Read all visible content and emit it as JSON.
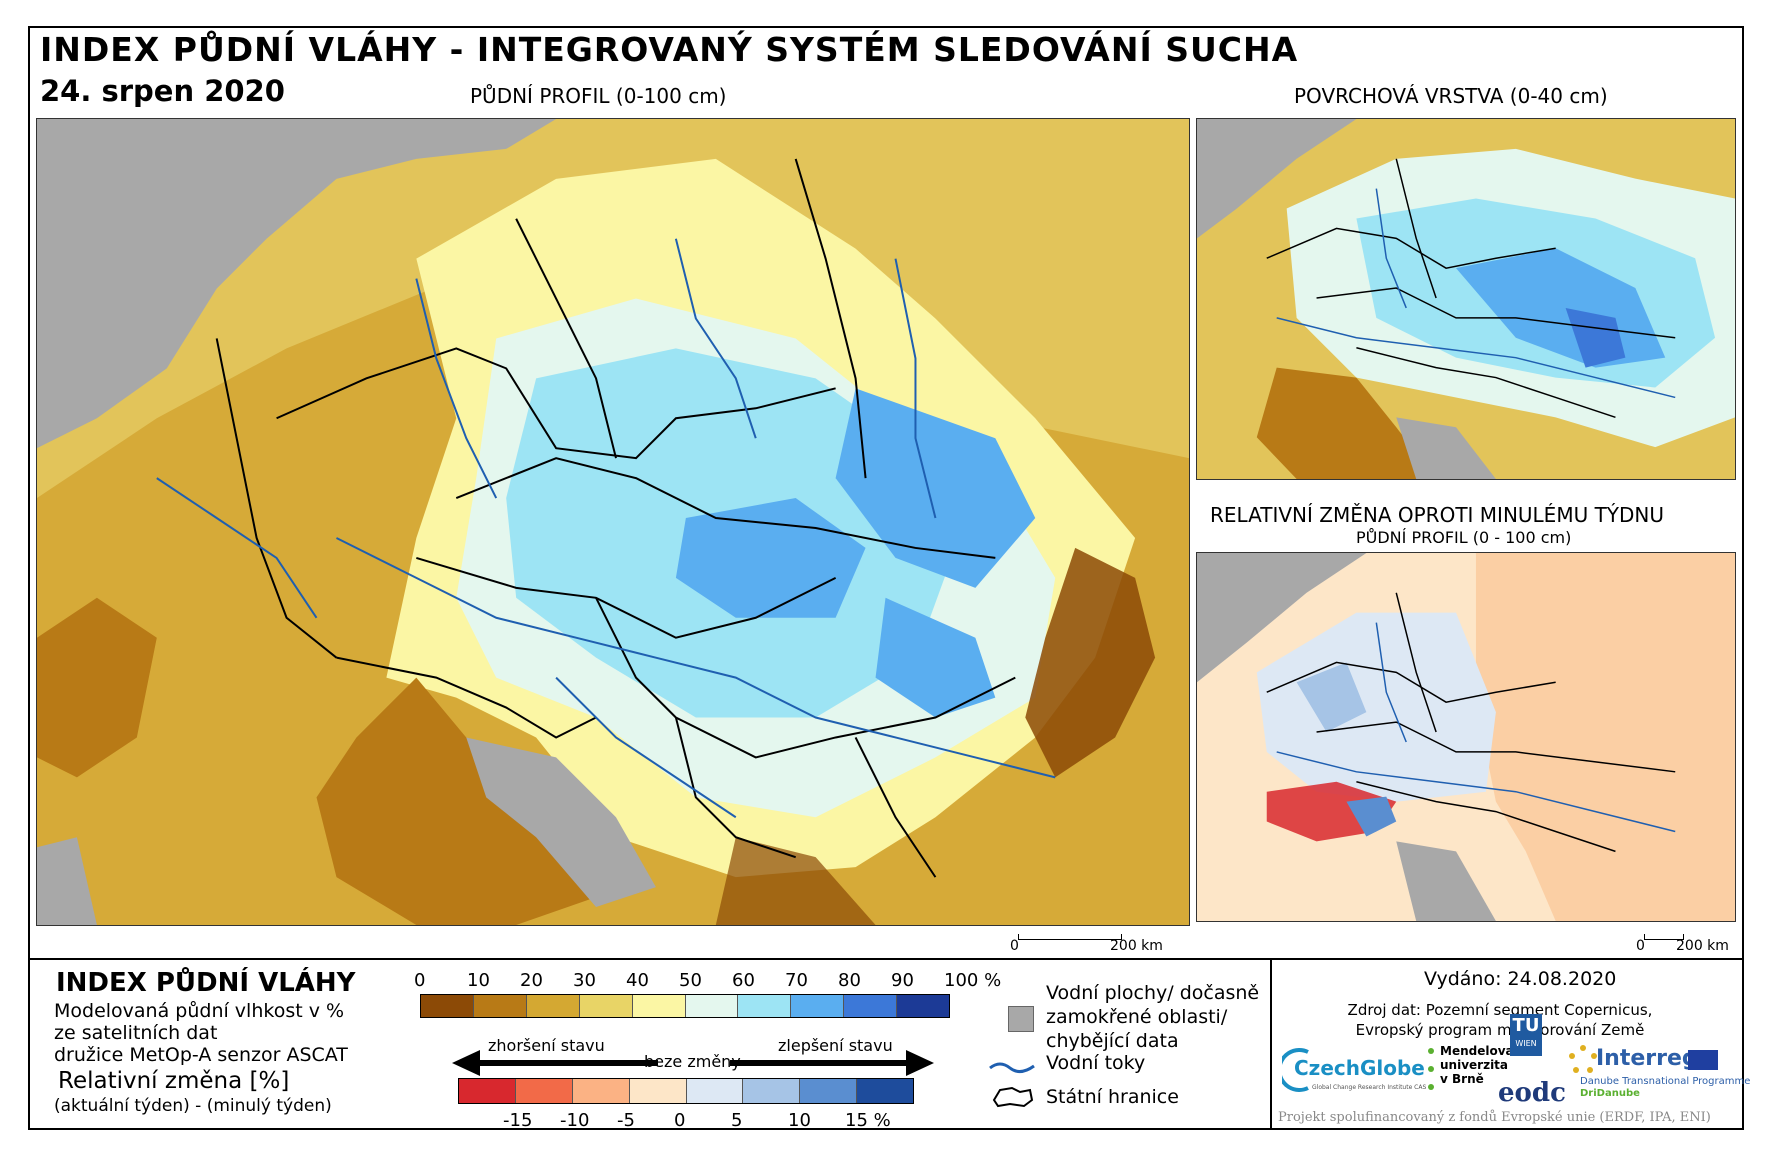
{
  "title": "INDEX PŮDNÍ VLÁHY - INTEGROVANÝ SYSTÉM SLEDOVÁNÍ SUCHA",
  "date": "24. srpen 2020",
  "maps": {
    "main_caption": "PŮDNÍ PROFIL (0-100 cm)",
    "surface_caption": "POVRCHOVÁ VRSTVA (0-40 cm)",
    "change_caption": "RELATIVNÍ ZMĚNA OPROTI MINULÉMU TÝDNU",
    "change_subcaption": "PŮDNÍ PROFIL (0 - 100 cm)"
  },
  "scalebar": {
    "zero": "0",
    "distance": "200 km"
  },
  "legend": {
    "title": "INDEX PŮDNÍ VLÁHY",
    "line1": "Modelovaná půdní vlhkost v %",
    "line2": "ze satelitních dat",
    "line3": "družice MetOp-A senzor ASCAT",
    "rel_title": "Relativní změna [%]",
    "rel_sub": "(aktuální týden) - (minulý týden)",
    "moisture_ticks": [
      "0",
      "10",
      "20",
      "30",
      "40",
      "50",
      "60",
      "70",
      "80",
      "90",
      "100 %"
    ],
    "moisture_colors": [
      "#8c4a06",
      "#b87a16",
      "#d4a832",
      "#e8d466",
      "#fbf6a4",
      "#e4f7ee",
      "#9de4f4",
      "#5aaef0",
      "#3c78d8",
      "#1c3a96"
    ],
    "worse_label": "zhoršení stavu",
    "nochange_label": "beze změny",
    "better_label": "zlepšení stavu",
    "change_ticks": [
      "-15",
      "-10",
      "-5",
      "0",
      "5",
      "10",
      "15 %"
    ],
    "change_colors": [
      "#d8282e",
      "#f26a48",
      "#fbb284",
      "#fde6c8",
      "#dde8f4",
      "#a6c4e6",
      "#5a8ed0",
      "#1e4c9c"
    ],
    "water_label_1": "Vodní plochy/ dočasně",
    "water_label_2": "zamokřené oblasti/",
    "water_label_3": "chybějící data",
    "rivers_label": "Vodní toky",
    "borders_label": "Státní hranice"
  },
  "info": {
    "issued": "Vydáno: 24.08.2020",
    "source_1": "Zdroj dat: Pozemní segment Copernicus,",
    "source_2": "Evropský program monitorování Země",
    "footer": "Projekt spolufinancovaný z fondů Evropské unie (ERDF, IPA, ENI)"
  },
  "logos": {
    "czechglobe": "CzechGlobe",
    "czechglobe_sub": "Global Change Research Institute CAS",
    "mendel_1": "Mendelova",
    "mendel_2": "univerzita",
    "mendel_3": "v Brně",
    "tu": "TU",
    "wien": "WIEN",
    "eodc": "eodc",
    "interreg": "Interreg",
    "interreg_sub": "Danube Transnational Programme",
    "dridanube": "DriDanube"
  }
}
